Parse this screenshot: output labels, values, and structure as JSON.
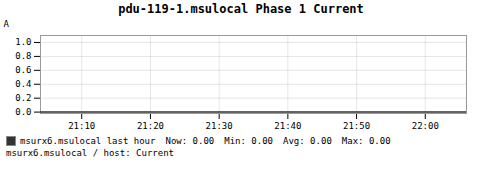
{
  "chart_data": {
    "type": "line",
    "title": "pdu-119-1.msulocal Phase 1 Current",
    "ylabel": "A",
    "x": [
      0,
      62
    ],
    "series": [
      {
        "name": "msurx6.msulocal last hour",
        "color": "#333333",
        "values": [
          0.0,
          0.0
        ]
      }
    ],
    "xlim": [
      0,
      62
    ],
    "xticks": [
      {
        "value": 6,
        "label": "21:10"
      },
      {
        "value": 16,
        "label": "21:20"
      },
      {
        "value": 26,
        "label": "21:30"
      },
      {
        "value": 36,
        "label": "21:40"
      },
      {
        "value": 46,
        "label": "21:50"
      },
      {
        "value": 56,
        "label": "22:00"
      }
    ],
    "ylim": [
      -0.02,
      1.1
    ],
    "yticks": [
      {
        "value": 0.0,
        "label": "0.0"
      },
      {
        "value": 0.2,
        "label": "0.2"
      },
      {
        "value": 0.4,
        "label": "0.4"
      },
      {
        "value": 0.6,
        "label": "0.6"
      },
      {
        "value": 0.8,
        "label": "0.8"
      },
      {
        "value": 1.0,
        "label": "1.0"
      }
    ],
    "grid": true,
    "legend": "bottom",
    "annotations": [
      "Now: 0.00",
      "Min: 0.00",
      "Avg: 0.00",
      "Max: 0.00",
      "msurx6.msulocal / host: Current"
    ]
  }
}
